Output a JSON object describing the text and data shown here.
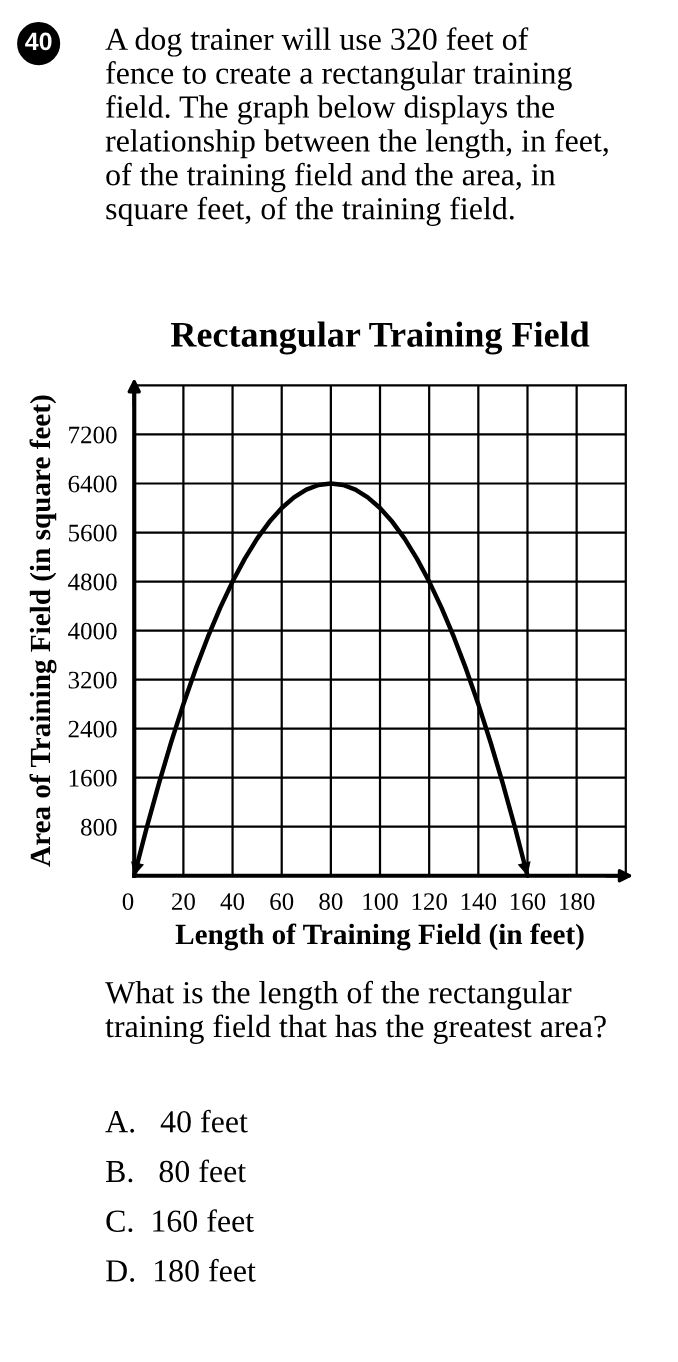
{
  "chart_data": {
    "type": "line",
    "title": "Rectangular Training Field",
    "xlabel": "Length of Training Field (in feet)",
    "ylabel": "Area of Training Field (in square feet)",
    "x": [
      0,
      5,
      10,
      15,
      20,
      25,
      30,
      35,
      40,
      45,
      50,
      55,
      60,
      65,
      70,
      75,
      80,
      85,
      90,
      95,
      100,
      105,
      110,
      115,
      120,
      125,
      130,
      135,
      140,
      145,
      150,
      155,
      160
    ],
    "series": [
      {
        "color": "#000000",
        "values": [
          0,
          775,
          1500,
          2175,
          2800,
          3375,
          3900,
          4375,
          4800,
          5175,
          5500,
          5775,
          6000,
          6175,
          6300,
          6375,
          6400,
          6375,
          6300,
          6175,
          6000,
          5775,
          5500,
          5175,
          4800,
          4375,
          3900,
          3375,
          2800,
          2175,
          1500,
          775,
          0
        ]
      }
    ],
    "xlim": [
      0,
      200
    ],
    "ylim": [
      0,
      8000
    ],
    "xticks": [
      {
        "value": 0,
        "label": "0"
      },
      20,
      40,
      60,
      80,
      100,
      120,
      140,
      160,
      180
    ],
    "yticks": [
      {
        "value": 0,
        "label": null
      },
      800,
      1600,
      2400,
      3200,
      4000,
      4800,
      5600,
      6400,
      7200
    ],
    "grid": true,
    "marker": "none",
    "line_style": "solid",
    "legend": false,
    "annotations": [
      "40",
      "A dog trainer will use 320 feet of\nfence to create a rectangular training\nfield. The graph below displays the\nrelationship between the length, in feet,\nof the training field and the area, in\nsquare feet, of the training field.",
      "What is the length of the rectangular\ntraining field that has the greatest area?",
      "A.   40 feet",
      "B.   80 feet",
      "C.  160 feet",
      "D.  180 feet"
    ]
  }
}
